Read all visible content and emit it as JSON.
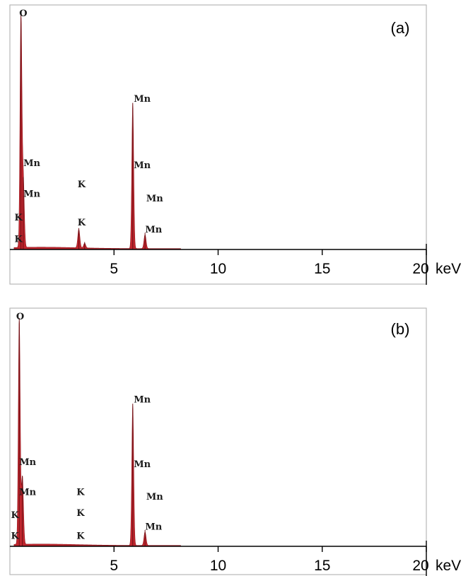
{
  "chart_data": [
    {
      "type": "area",
      "panel_label": "(a)",
      "x_unit": "keV",
      "xlim": [
        0,
        20
      ],
      "x_ticks": [
        "5",
        "10",
        "15",
        "20"
      ],
      "peaks": [
        {
          "x": 0.53,
          "y": 100
        },
        {
          "x": 0.64,
          "y": 30
        },
        {
          "x": 3.31,
          "y": 8
        },
        {
          "x": 3.59,
          "y": 2
        },
        {
          "x": 5.9,
          "y": 62
        },
        {
          "x": 6.49,
          "y": 6
        }
      ],
      "labels": [
        {
          "text": "O",
          "x": 0.45,
          "level": 0.97
        },
        {
          "text": "Mn",
          "x": 0.65,
          "level": 0.34
        },
        {
          "text": "Mn",
          "x": 0.65,
          "level": 0.21
        },
        {
          "text": "K",
          "x": 0.22,
          "level": 0.11
        },
        {
          "text": "K",
          "x": 0.22,
          "level": 0.02
        },
        {
          "text": "K",
          "x": 3.25,
          "level": 0.25
        },
        {
          "text": "K",
          "x": 3.25,
          "level": 0.09
        },
        {
          "text": "Mn",
          "x": 5.95,
          "level": 0.61
        },
        {
          "text": "Mn",
          "x": 5.95,
          "level": 0.33
        },
        {
          "text": "Mn",
          "x": 6.55,
          "level": 0.19
        },
        {
          "text": "Mn",
          "x": 6.5,
          "level": 0.06
        }
      ]
    },
    {
      "type": "area",
      "panel_label": "(b)",
      "x_unit": "keV",
      "xlim": [
        0,
        20
      ],
      "x_ticks": [
        "5",
        "10",
        "15",
        "20"
      ],
      "peaks": [
        {
          "x": 0.45,
          "y": 100
        },
        {
          "x": 0.6,
          "y": 30
        },
        {
          "x": 3.31,
          "y": 0
        },
        {
          "x": 5.9,
          "y": 62
        },
        {
          "x": 6.49,
          "y": 6
        }
      ],
      "labels": [
        {
          "text": "O",
          "x": 0.3,
          "level": 0.97
        },
        {
          "text": "Mn",
          "x": 0.45,
          "level": 0.34
        },
        {
          "text": "Mn",
          "x": 0.45,
          "level": 0.21
        },
        {
          "text": "K",
          "x": 0.05,
          "level": 0.11
        },
        {
          "text": "K",
          "x": 0.05,
          "level": 0.02
        },
        {
          "text": "K",
          "x": 3.2,
          "level": 0.21
        },
        {
          "text": "K",
          "x": 3.2,
          "level": 0.12
        },
        {
          "text": "K",
          "x": 3.2,
          "level": 0.02
        },
        {
          "text": "Mn",
          "x": 5.95,
          "level": 0.61
        },
        {
          "text": "Mn",
          "x": 5.95,
          "level": 0.33
        },
        {
          "text": "Mn",
          "x": 6.55,
          "level": 0.19
        },
        {
          "text": "Mn",
          "x": 6.5,
          "level": 0.06
        }
      ]
    }
  ]
}
